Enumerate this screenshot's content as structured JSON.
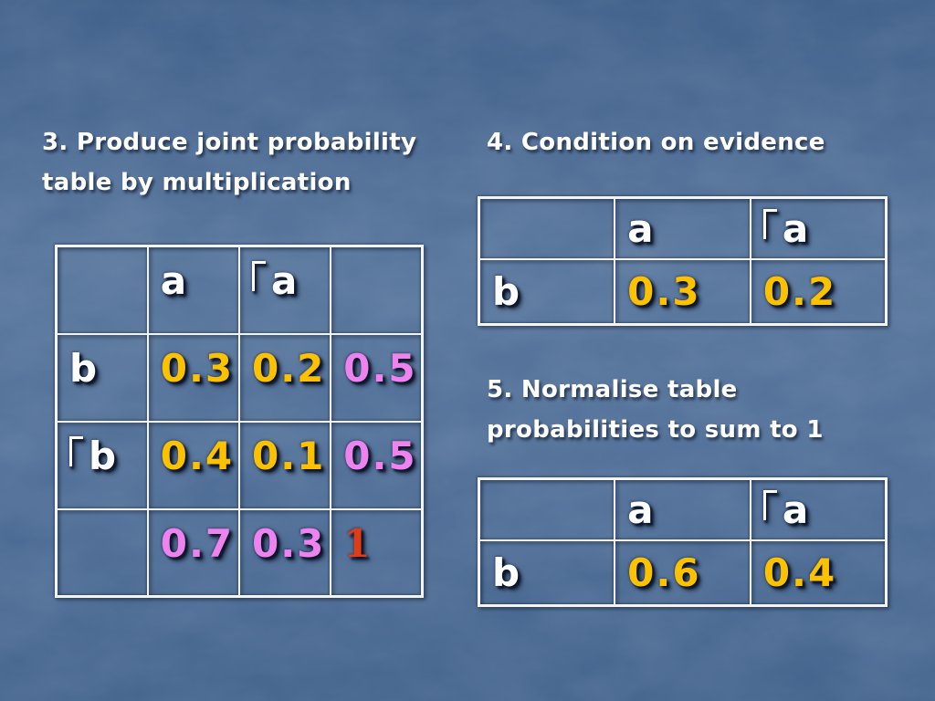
{
  "palette": {
    "text_white": "#ffffff",
    "value_gold": "#fcc200",
    "value_violet": "#ee82ee",
    "value_red": "#e23b17",
    "table_border": "#f4f4f4",
    "bg_top": "#3f5f89",
    "bg_mid": "#56749b",
    "bg_low": "#4e6d96",
    "bg_bottom": "#44648d"
  },
  "sections": {
    "s3": {
      "title_lines": [
        "3. Produce joint probability",
        "table by multiplication"
      ],
      "table": {
        "rows": [
          [
            {
              "t": ""
            },
            {
              "t": "a",
              "c": "text_white"
            },
            {
              "t": "a",
              "c": "text_white",
              "neg": true
            },
            {
              "t": ""
            }
          ],
          [
            {
              "t": "b",
              "c": "text_white"
            },
            {
              "t": "0.3",
              "c": "value_gold"
            },
            {
              "t": "0.2",
              "c": "value_gold"
            },
            {
              "t": "0.5",
              "c": "value_violet"
            }
          ],
          [
            {
              "t": "b",
              "c": "text_white",
              "neg": true
            },
            {
              "t": "0.4",
              "c": "value_gold"
            },
            {
              "t": "0.1",
              "c": "value_gold"
            },
            {
              "t": "0.5",
              "c": "value_violet"
            }
          ],
          [
            {
              "t": ""
            },
            {
              "t": "0.7",
              "c": "value_violet"
            },
            {
              "t": "0.3",
              "c": "value_violet"
            },
            {
              "t": "1",
              "c": "value_red",
              "serif": true
            }
          ]
        ]
      }
    },
    "s4": {
      "title_lines": [
        "4. Condition on evidence"
      ],
      "table": {
        "rows": [
          [
            {
              "t": ""
            },
            {
              "t": "a",
              "c": "text_white"
            },
            {
              "t": "a",
              "c": "text_white",
              "neg": true
            }
          ],
          [
            {
              "t": "b",
              "c": "text_white"
            },
            {
              "t": "0.3",
              "c": "value_gold"
            },
            {
              "t": "0.2",
              "c": "value_gold"
            }
          ]
        ]
      }
    },
    "s5": {
      "title_lines": [
        "5. Normalise table",
        "probabilities to sum to 1"
      ],
      "table": {
        "rows": [
          [
            {
              "t": ""
            },
            {
              "t": "a",
              "c": "text_white"
            },
            {
              "t": "a",
              "c": "text_white",
              "neg": true
            }
          ],
          [
            {
              "t": "b",
              "c": "text_white"
            },
            {
              "t": "0.6",
              "c": "value_gold"
            },
            {
              "t": "0.4",
              "c": "value_gold"
            }
          ]
        ]
      }
    }
  }
}
